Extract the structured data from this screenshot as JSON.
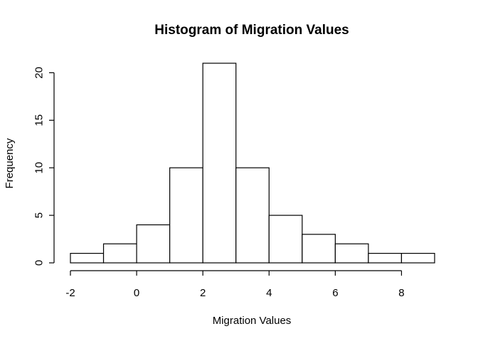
{
  "chart_data": {
    "type": "bar",
    "title": "Histogram of Migration Values",
    "xlabel": "Migration Values",
    "ylabel": "Frequency",
    "bin_edges": [
      -2,
      -1,
      0,
      1,
      2,
      3,
      4,
      5,
      6,
      7,
      8,
      9
    ],
    "values": [
      1,
      2,
      4,
      10,
      21,
      10,
      5,
      3,
      2,
      1,
      1
    ],
    "xticks": [
      "-2",
      "0",
      "2",
      "4",
      "6",
      "8"
    ],
    "xtick_values": [
      -2,
      0,
      2,
      4,
      6,
      8
    ],
    "yticks": [
      "0",
      "5",
      "10",
      "15",
      "20"
    ],
    "ytick_values": [
      0,
      5,
      10,
      15,
      20
    ],
    "xlim": [
      -2,
      9
    ],
    "ylim": [
      0,
      21
    ],
    "grid": false,
    "bar_fill": "#ffffff",
    "bar_stroke": "#000000"
  }
}
